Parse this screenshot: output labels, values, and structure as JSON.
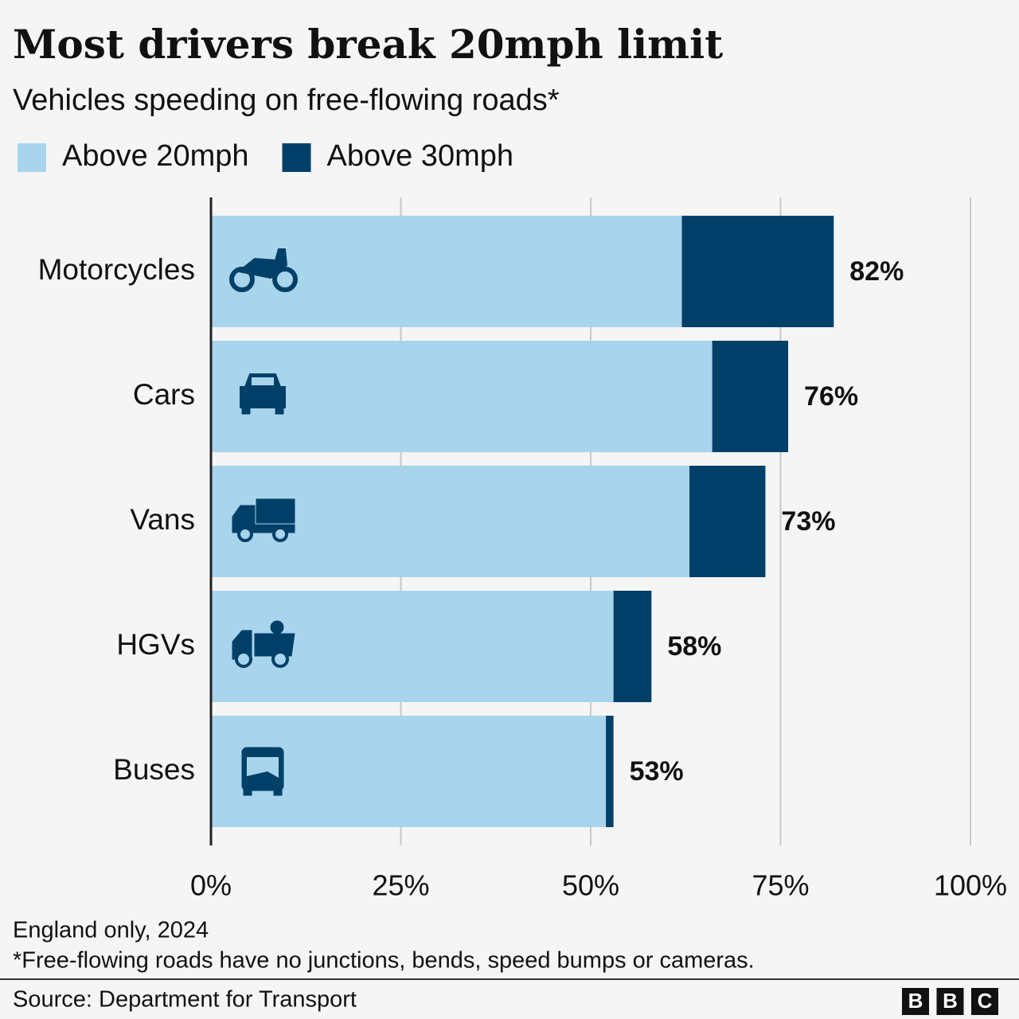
{
  "chart_data": {
    "type": "stacked-bar-horizontal",
    "title": "Most drivers break 20mph limit",
    "subtitle": "Vehicles speeding on free-flowing roads*",
    "categories": [
      "Motorcycles",
      "Cars",
      "Vans",
      "HGVs",
      "Buses"
    ],
    "series": [
      {
        "name": "Above 20mph",
        "color": "#a8d5ec",
        "values": [
          62,
          66,
          63,
          53,
          52
        ]
      },
      {
        "name": "Above 30mph",
        "color": "#004068",
        "values": [
          20,
          10,
          10,
          5,
          1
        ]
      }
    ],
    "totals": [
      82,
      76,
      73,
      58,
      53
    ],
    "total_labels": [
      "82%",
      "76%",
      "73%",
      "58%",
      "53%"
    ],
    "xlim": [
      0,
      100
    ],
    "xticks": [
      {
        "value": 0,
        "label": "0%"
      },
      {
        "value": 25,
        "label": "25%"
      },
      {
        "value": 50,
        "label": "50%"
      },
      {
        "value": 75,
        "label": "75%"
      },
      {
        "value": 100,
        "label": "100%"
      }
    ],
    "grid": true,
    "legend": "top-left",
    "note": "England only, 2024",
    "footnote": "*Free-flowing roads have no junctions, bends, speed bumps or cameras.",
    "source": "Source: Department for Transport",
    "logo": [
      "B",
      "B",
      "C"
    ]
  }
}
